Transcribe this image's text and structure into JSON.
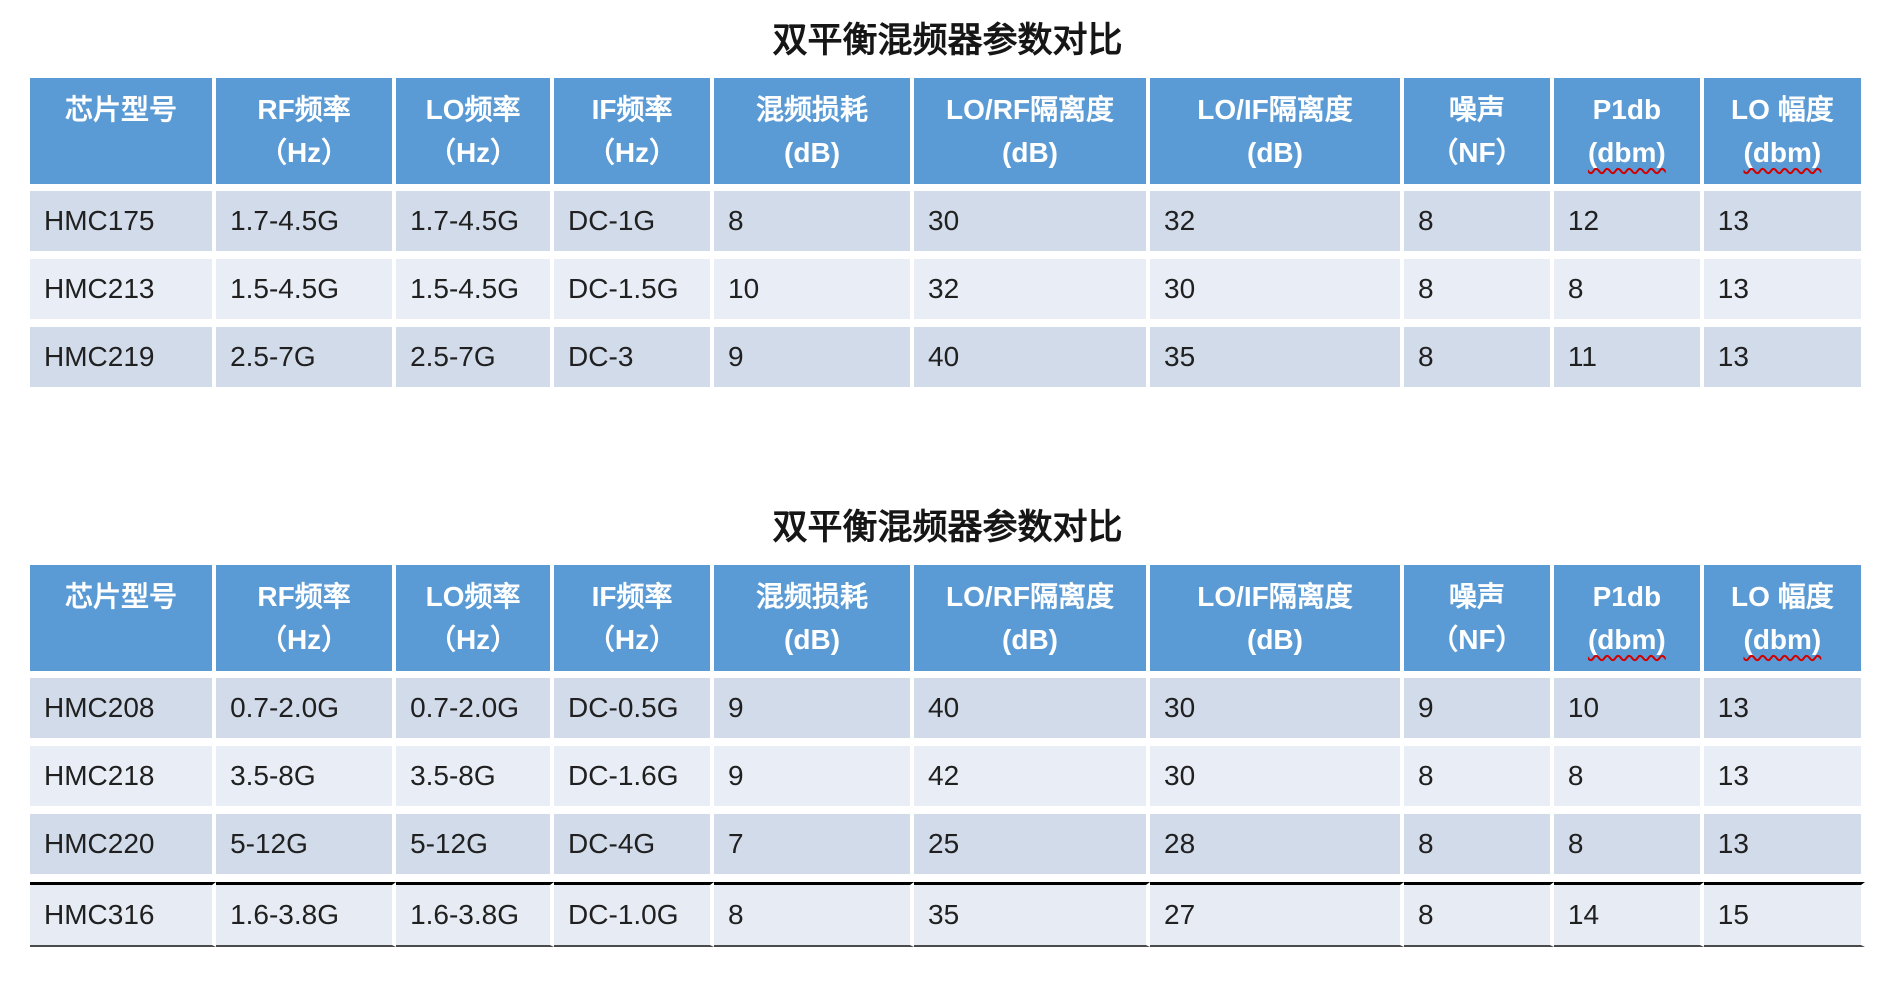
{
  "colors": {
    "header_bg": "#5B9BD5",
    "header_text": "#FFFFFF",
    "band_dark": "#D2DBEA",
    "band_light": "#E9EEF6",
    "title_text": "#161616",
    "body_text": "#202020",
    "spellcheck_underline": "#D20000",
    "last_row_border": "#000000"
  },
  "chart_data": [
    {
      "type": "table",
      "title": "双平衡混频器参数对比",
      "columns": [
        {
          "label": "芯片型号",
          "unit": ""
        },
        {
          "label": "RF频率",
          "unit": "（Hz）"
        },
        {
          "label": "LO频率",
          "unit": "（Hz）"
        },
        {
          "label": "IF频率",
          "unit": "（Hz）"
        },
        {
          "label": "混频损耗",
          "unit": "(dB)"
        },
        {
          "label": "LO/RF隔离度",
          "unit": "(dB)"
        },
        {
          "label": "LO/IF隔离度",
          "unit": "(dB)"
        },
        {
          "label": "噪声",
          "unit": "（NF）"
        },
        {
          "label": "P1db",
          "unit": "(dbm)",
          "underline": "red-wavy"
        },
        {
          "label": "LO 幅度",
          "unit": "(dbm)",
          "underline": "red-wavy"
        }
      ],
      "rows": [
        [
          "HMC175",
          "1.7-4.5G",
          "1.7-4.5G",
          "DC-1G",
          "8",
          "30",
          "32",
          "8",
          "12",
          "13"
        ],
        [
          "HMC213",
          "1.5-4.5G",
          "1.5-4.5G",
          "DC-1.5G",
          "10",
          "32",
          "30",
          "8",
          "8",
          "13"
        ],
        [
          "HMC219",
          "2.5-7G",
          "2.5-7G",
          "DC-3",
          "9",
          "40",
          "35",
          "8",
          "11",
          "13"
        ]
      ]
    },
    {
      "type": "table",
      "title": "双平衡混频器参数对比",
      "columns": [
        {
          "label": "芯片型号",
          "unit": ""
        },
        {
          "label": "RF频率",
          "unit": "（Hz）"
        },
        {
          "label": "LO频率",
          "unit": "（Hz）"
        },
        {
          "label": "IF频率",
          "unit": "（Hz）"
        },
        {
          "label": "混频损耗",
          "unit": "(dB)"
        },
        {
          "label": "LO/RF隔离度",
          "unit": "(dB)"
        },
        {
          "label": "LO/IF隔离度",
          "unit": "(dB)"
        },
        {
          "label": "噪声",
          "unit": "（NF）"
        },
        {
          "label": "P1db",
          "unit": "(dbm)",
          "underline": "red-wavy"
        },
        {
          "label": "LO 幅度",
          "unit": "(dbm)",
          "underline": "red-wavy"
        }
      ],
      "rows": [
        [
          "HMC208",
          "0.7-2.0G",
          "0.7-2.0G",
          "DC-0.5G",
          "9",
          "40",
          "30",
          "9",
          "10",
          "13"
        ],
        [
          "HMC218",
          "3.5-8G",
          "3.5-8G",
          "DC-1.6G",
          "9",
          "42",
          "30",
          "8",
          "8",
          "13"
        ],
        [
          "HMC220",
          "5-12G",
          "5-12G",
          "DC-4G",
          "7",
          "25",
          "28",
          "8",
          "8",
          "13"
        ],
        [
          "HMC316",
          "1.6-3.8G",
          "1.6-3.8G",
          "DC-1.0G",
          "8",
          "35",
          "27",
          "8",
          "14",
          "15"
        ]
      ]
    }
  ]
}
